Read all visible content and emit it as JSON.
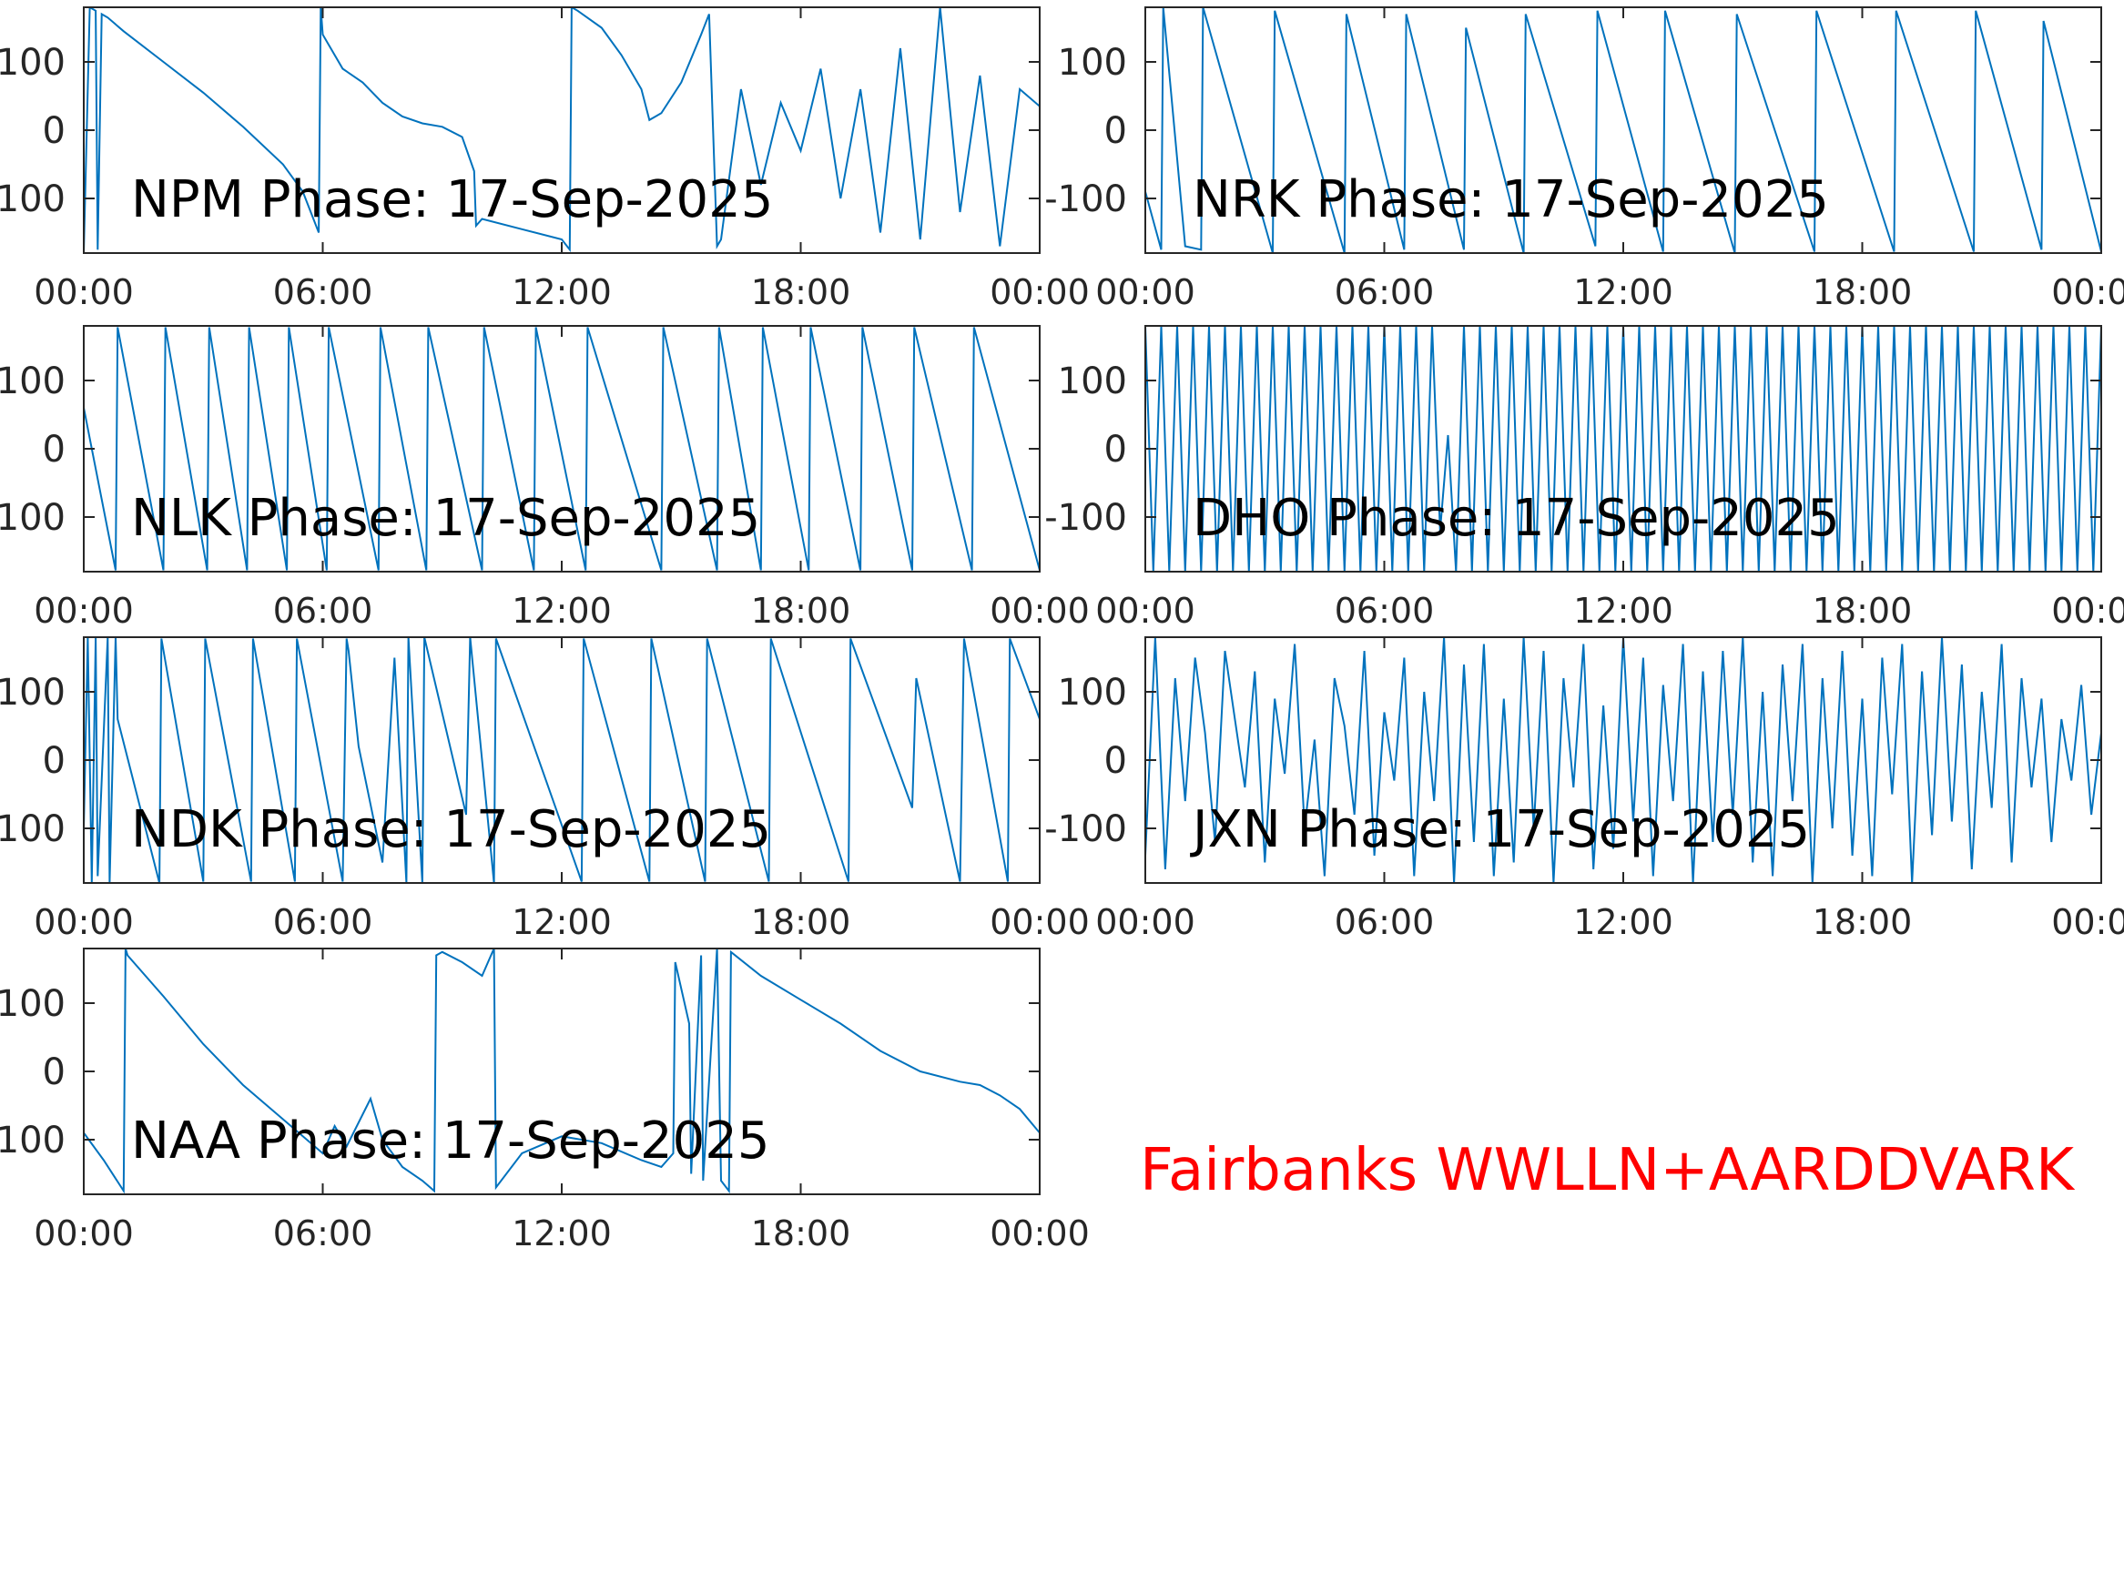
{
  "figure": {
    "caption": "Fairbanks WWLLN+AARDDVARK",
    "caption_color": "#ff0000",
    "line_color": "#0072bd",
    "axis_color": "#262626",
    "title_color": "#000000"
  },
  "chart_data": [
    {
      "type": "line",
      "title": "NPM Phase: 17-Sep-2025",
      "xlabel": "",
      "ylabel": "",
      "x_ticks": [
        "00:00",
        "06:00",
        "12:00",
        "18:00",
        "00:00"
      ],
      "y_ticks": [
        "100",
        "0",
        "-100"
      ],
      "xlim": [
        0,
        24
      ],
      "ylim": [
        -180,
        180
      ],
      "grid": false,
      "series": [
        {
          "x": [
            0,
            0.15,
            0.3,
            0.35,
            0.45,
            0.6,
            1,
            2,
            3,
            4,
            5,
            5.5,
            5.9,
            5.95,
            6.0,
            6.5,
            7,
            7.5,
            8,
            8.5,
            9,
            9.5,
            9.8,
            9.85,
            10,
            11,
            12,
            12.2,
            12.25,
            12.4,
            13,
            13.5,
            14,
            14.2,
            14.5,
            15,
            15.5,
            15.7,
            15.9,
            16,
            16.5,
            17,
            17.5,
            18,
            18.5,
            19,
            19.5,
            20,
            20.5,
            21,
            21.5,
            22,
            22.5,
            23,
            23.5,
            24
          ],
          "y": [
            -180,
            180,
            175,
            -175,
            170,
            165,
            145,
            100,
            55,
            5,
            -50,
            -90,
            -150,
            180,
            140,
            90,
            70,
            40,
            20,
            10,
            5,
            -10,
            -60,
            -140,
            -130,
            -145,
            -160,
            -175,
            180,
            175,
            150,
            110,
            60,
            15,
            25,
            70,
            140,
            170,
            -170,
            -160,
            60,
            -80,
            40,
            -30,
            90,
            -100,
            60,
            -150,
            120,
            -160,
            180,
            -120,
            80,
            -170,
            60,
            35
          ]
        }
      ]
    },
    {
      "type": "line",
      "title": "NRK Phase: 17-Sep-2025",
      "xlabel": "",
      "ylabel": "",
      "x_ticks": [
        "00:00",
        "06:00",
        "12:00",
        "18:00",
        "00:00"
      ],
      "y_ticks": [
        "100",
        "0",
        "-100"
      ],
      "xlim": [
        0,
        24
      ],
      "ylim": [
        -180,
        180
      ],
      "grid": false,
      "series": [
        {
          "x": [
            0,
            0.4,
            0.45,
            1.0,
            1.4,
            1.45,
            3.2,
            3.25,
            5.0,
            5.05,
            6.5,
            6.55,
            8.0,
            8.05,
            9.5,
            9.55,
            11.3,
            11.35,
            13.0,
            13.05,
            14.8,
            14.85,
            16.8,
            16.85,
            18.8,
            18.85,
            20.8,
            20.85,
            22.5,
            22.55,
            24
          ],
          "y": [
            -90,
            -175,
            180,
            -170,
            -175,
            180,
            -180,
            175,
            -180,
            170,
            -175,
            170,
            -175,
            150,
            -180,
            170,
            -170,
            175,
            -178,
            175,
            -180,
            170,
            -178,
            175,
            -178,
            175,
            -178,
            175,
            -175,
            160,
            -178
          ]
        }
      ]
    },
    {
      "type": "line",
      "title": "NLK Phase: 17-Sep-2025",
      "xlabel": "",
      "ylabel": "",
      "x_ticks": [
        "00:00",
        "06:00",
        "12:00",
        "18:00",
        "00:00"
      ],
      "y_ticks": [
        "100",
        "0",
        "-100"
      ],
      "xlim": [
        0,
        24
      ],
      "ylim": [
        -180,
        180
      ],
      "grid": false,
      "series": [
        {
          "x": [
            0,
            0.8,
            0.85,
            2.0,
            2.05,
            3.1,
            3.15,
            4.1,
            4.15,
            5.1,
            5.15,
            6.1,
            6.15,
            7.4,
            7.45,
            8.6,
            8.65,
            10.0,
            10.05,
            11.3,
            11.35,
            12.6,
            12.65,
            14.5,
            14.55,
            15.9,
            15.95,
            17.0,
            17.05,
            18.2,
            18.25,
            19.5,
            19.55,
            20.8,
            20.85,
            22.3,
            22.35,
            24
          ],
          "y": [
            60,
            -178,
            178,
            -178,
            178,
            -178,
            178,
            -178,
            178,
            -178,
            178,
            -178,
            178,
            -178,
            178,
            -178,
            178,
            -178,
            178,
            -178,
            178,
            -178,
            178,
            -178,
            178,
            -178,
            178,
            -178,
            178,
            -178,
            178,
            -178,
            178,
            -178,
            178,
            -178,
            178,
            -178
          ]
        }
      ]
    },
    {
      "type": "line",
      "title": "DHO Phase: 17-Sep-2025",
      "xlabel": "",
      "ylabel": "",
      "x_ticks": [
        "00:00",
        "06:00",
        "12:00",
        "18:00",
        "00:00"
      ],
      "y_ticks": [
        "100",
        "0",
        "-100"
      ],
      "xlim": [
        0,
        24
      ],
      "ylim": [
        -180,
        180
      ],
      "grid": false,
      "sawtooth_period_hours": 0.2,
      "series": [
        {
          "x": [
            0,
            0.2,
            0.4,
            0.6,
            0.8,
            1.0,
            1.2,
            1.4,
            1.6,
            1.8,
            2.0,
            2.2,
            2.4,
            2.6,
            2.8,
            3.0,
            3.2,
            3.4,
            3.6,
            3.8,
            4.0,
            4.2,
            4.4,
            4.6,
            4.8,
            5.0,
            5.2,
            5.4,
            5.6,
            5.8,
            6.0,
            6.2,
            6.4,
            6.6,
            6.8,
            7.0,
            7.2,
            7.4,
            7.6,
            7.8,
            8.0,
            8.2,
            8.4,
            8.6,
            8.8,
            9.0,
            9.2,
            9.4,
            9.6,
            9.8,
            10.0,
            10.2,
            10.4,
            10.6,
            10.8,
            11.0,
            11.2,
            11.4,
            11.6,
            11.8,
            12.0,
            12.2,
            12.4,
            12.6,
            12.8,
            13.0,
            13.2,
            13.4,
            13.6,
            13.8,
            14.0,
            14.2,
            14.4,
            14.6,
            14.8,
            15.0,
            15.2,
            15.4,
            15.6,
            15.8,
            16.0,
            16.2,
            16.4,
            16.6,
            16.8,
            17.0,
            17.2,
            17.4,
            17.6,
            17.8,
            18.0,
            18.2,
            18.4,
            18.6,
            18.8,
            19.0,
            19.2,
            19.4,
            19.6,
            19.8,
            20.0,
            20.2,
            20.4,
            20.6,
            20.8,
            21.0,
            21.2,
            21.4,
            21.6,
            21.8,
            22.0,
            22.2,
            22.4,
            22.6,
            22.8,
            23.0,
            23.2,
            23.4,
            23.6,
            23.8,
            24.0
          ],
          "y": [
            180,
            -180,
            180,
            -180,
            180,
            -180,
            180,
            -180,
            180,
            -180,
            180,
            -180,
            180,
            -180,
            180,
            -180,
            180,
            -180,
            180,
            -180,
            180,
            -180,
            180,
            -180,
            180,
            -180,
            180,
            -180,
            180,
            -180,
            180,
            -180,
            180,
            -180,
            180,
            -180,
            180,
            -120,
            20,
            -180,
            180,
            -180,
            180,
            -180,
            180,
            -180,
            180,
            -180,
            180,
            -180,
            180,
            -180,
            180,
            -180,
            180,
            -180,
            180,
            -180,
            180,
            -180,
            180,
            -180,
            180,
            -180,
            180,
            -180,
            180,
            -180,
            180,
            -180,
            180,
            -180,
            180,
            -180,
            180,
            -180,
            180,
            -180,
            180,
            -180,
            180,
            -180,
            180,
            -180,
            180,
            -180,
            180,
            -180,
            180,
            -180,
            180,
            -180,
            180,
            -180,
            180,
            -180,
            180,
            -180,
            180,
            -180,
            180,
            -180,
            180,
            -180,
            180,
            -180,
            180,
            -180,
            180,
            -180,
            180,
            -180,
            180,
            -180,
            180,
            -180,
            180,
            -180,
            180,
            -180,
            180
          ]
        }
      ]
    },
    {
      "type": "line",
      "title": "NDK Phase: 17-Sep-2025",
      "xlabel": "",
      "ylabel": "",
      "x_ticks": [
        "00:00",
        "06:00",
        "12:00",
        "18:00",
        "00:00"
      ],
      "y_ticks": [
        "100",
        "0",
        "-100"
      ],
      "xlim": [
        0,
        24
      ],
      "ylim": [
        -180,
        180
      ],
      "grid": false,
      "series": [
        {
          "x": [
            0,
            0.1,
            0.2,
            0.3,
            0.35,
            0.6,
            0.65,
            0.8,
            0.85,
            1.9,
            1.95,
            3.0,
            3.05,
            4.2,
            4.25,
            5.3,
            5.35,
            6.5,
            6.6,
            6.65,
            6.9,
            7.5,
            7.8,
            8.1,
            8.15,
            8.5,
            8.55,
            9.6,
            9.7,
            10.3,
            10.35,
            12.5,
            12.55,
            14.2,
            14.25,
            15.6,
            15.65,
            17.2,
            17.25,
            19.2,
            19.25,
            20.8,
            20.9,
            22.0,
            22.1,
            23.2,
            23.25,
            24
          ],
          "y": [
            -100,
            180,
            -180,
            180,
            -170,
            180,
            -180,
            180,
            60,
            -180,
            178,
            -178,
            178,
            -178,
            178,
            -178,
            178,
            -178,
            178,
            160,
            20,
            -150,
            150,
            -180,
            180,
            -180,
            180,
            -80,
            180,
            -180,
            178,
            -178,
            178,
            -178,
            178,
            -178,
            178,
            -178,
            178,
            -178,
            178,
            -70,
            120,
            -178,
            178,
            -178,
            178,
            60
          ]
        }
      ]
    },
    {
      "type": "line",
      "title": "JXN Phase: 17-Sep-2025",
      "xlabel": "",
      "ylabel": "",
      "x_ticks": [
        "00:00",
        "06:00",
        "12:00",
        "18:00",
        "00:00"
      ],
      "y_ticks": [
        "100",
        "0",
        "-100"
      ],
      "xlim": [
        0,
        24
      ],
      "ylim": [
        -180,
        180
      ],
      "grid": false,
      "series": [
        {
          "x": [
            0,
            0.25,
            0.5,
            0.75,
            1.0,
            1.25,
            1.5,
            1.75,
            2.0,
            2.25,
            2.5,
            2.75,
            3.0,
            3.25,
            3.5,
            3.75,
            4.0,
            4.25,
            4.5,
            4.75,
            5.0,
            5.25,
            5.5,
            5.75,
            6.0,
            6.25,
            6.5,
            6.75,
            7.0,
            7.25,
            7.5,
            7.75,
            8.0,
            8.25,
            8.5,
            8.75,
            9.0,
            9.25,
            9.5,
            9.75,
            10.0,
            10.25,
            10.5,
            10.75,
            11.0,
            11.25,
            11.5,
            11.75,
            12.0,
            12.25,
            12.5,
            12.75,
            13.0,
            13.25,
            13.5,
            13.75,
            14.0,
            14.25,
            14.5,
            14.75,
            15.0,
            15.25,
            15.5,
            15.75,
            16.0,
            16.25,
            16.5,
            16.75,
            17.0,
            17.25,
            17.5,
            17.75,
            18.0,
            18.25,
            18.5,
            18.75,
            19.0,
            19.25,
            19.5,
            19.75,
            20.0,
            20.25,
            20.5,
            20.75,
            21.0,
            21.25,
            21.5,
            21.75,
            22.0,
            22.25,
            22.5,
            22.75,
            23.0,
            23.25,
            23.5,
            23.75,
            24.0
          ],
          "y": [
            -140,
            180,
            -160,
            120,
            -60,
            150,
            40,
            -120,
            160,
            60,
            -40,
            130,
            -150,
            90,
            -20,
            170,
            -100,
            30,
            -170,
            120,
            50,
            -80,
            160,
            -140,
            70,
            -30,
            150,
            -170,
            100,
            -60,
            180,
            -180,
            140,
            -120,
            170,
            -170,
            90,
            -150,
            180,
            -100,
            160,
            -180,
            120,
            -40,
            170,
            -160,
            80,
            -130,
            180,
            -90,
            150,
            -170,
            110,
            -60,
            170,
            -180,
            130,
            -120,
            160,
            -80,
            180,
            -150,
            100,
            -170,
            140,
            -60,
            170,
            -180,
            120,
            -100,
            160,
            -140,
            90,
            -170,
            150,
            -50,
            170,
            -180,
            130,
            -110,
            180,
            -90,
            140,
            -160,
            100,
            -70,
            170,
            -150,
            120,
            -40,
            90,
            -120,
            60,
            -30,
            110,
            -80,
            40
          ]
        }
      ]
    },
    {
      "type": "line",
      "title": "NAA Phase: 17-Sep-2025",
      "xlabel": "",
      "ylabel": "",
      "x_ticks": [
        "00:00",
        "06:00",
        "12:00",
        "18:00",
        "00:00"
      ],
      "y_ticks": [
        "100",
        "0",
        "-100"
      ],
      "xlim": [
        0,
        24
      ],
      "ylim": [
        -180,
        180
      ],
      "grid": false,
      "series": [
        {
          "x": [
            0,
            0.5,
            1.0,
            1.05,
            1.1,
            2,
            3,
            4,
            5,
            6,
            6.3,
            6.6,
            7.2,
            7.5,
            8,
            8.5,
            8.8,
            8.85,
            9.0,
            9.5,
            10.0,
            10.3,
            10.35,
            11.0,
            12.0,
            13.0,
            14.0,
            14.5,
            14.8,
            14.85,
            15.2,
            15.25,
            15.5,
            15.55,
            15.9,
            16.0,
            16.2,
            16.25,
            17,
            18,
            19,
            20,
            21,
            22,
            22.5,
            23,
            23.5,
            24
          ],
          "y": [
            -90,
            -130,
            -175,
            180,
            170,
            110,
            40,
            -20,
            -70,
            -120,
            -80,
            -110,
            -40,
            -100,
            -140,
            -160,
            -175,
            170,
            175,
            160,
            140,
            180,
            -170,
            -120,
            -95,
            -105,
            -130,
            -140,
            -120,
            160,
            70,
            -150,
            170,
            -160,
            180,
            -160,
            -175,
            175,
            140,
            105,
            70,
            30,
            0,
            -15,
            -20,
            -35,
            -55,
            -90
          ]
        }
      ]
    }
  ]
}
